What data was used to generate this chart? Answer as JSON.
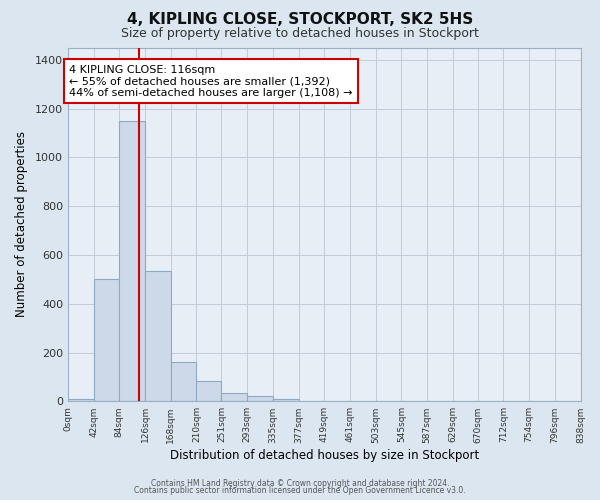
{
  "title": "4, KIPLING CLOSE, STOCKPORT, SK2 5HS",
  "subtitle": "Size of property relative to detached houses in Stockport",
  "xlabel": "Distribution of detached houses by size in Stockport",
  "ylabel": "Number of detached properties",
  "bin_edges": [
    0,
    42,
    84,
    126,
    168,
    210,
    251,
    293,
    335,
    377,
    419,
    461,
    503,
    545,
    587,
    629,
    670,
    712,
    754,
    796,
    838
  ],
  "bar_heights": [
    10,
    500,
    1150,
    535,
    160,
    83,
    35,
    20,
    10,
    0,
    0,
    0,
    0,
    0,
    0,
    0,
    0,
    0,
    0,
    0
  ],
  "tick_labels": [
    "0sqm",
    "42sqm",
    "84sqm",
    "126sqm",
    "168sqm",
    "210sqm",
    "251sqm",
    "293sqm",
    "335sqm",
    "377sqm",
    "419sqm",
    "461sqm",
    "503sqm",
    "545sqm",
    "587sqm",
    "629sqm",
    "670sqm",
    "712sqm",
    "754sqm",
    "796sqm",
    "838sqm"
  ],
  "bar_color": "#cdd9e8",
  "bar_edge_color": "#8aaac8",
  "vline_x": 116,
  "vline_color": "#cc0000",
  "annotation_text": "4 KIPLING CLOSE: 116sqm\n← 55% of detached houses are smaller (1,392)\n44% of semi-detached houses are larger (1,108) →",
  "annotation_box_facecolor": "white",
  "annotation_box_edgecolor": "#cc0000",
  "ylim": [
    0,
    1450
  ],
  "yticks": [
    0,
    200,
    400,
    600,
    800,
    1000,
    1200,
    1400
  ],
  "footer1": "Contains HM Land Registry data © Crown copyright and database right 2024.",
  "footer2": "Contains public sector information licensed under the Open Government Licence v3.0.",
  "fig_background_color": "#dce6f0",
  "plot_background_color": "#e8eef5",
  "grid_color": "#c0ccd8",
  "title_fontsize": 11,
  "subtitle_fontsize": 9,
  "annotation_fontsize": 8
}
